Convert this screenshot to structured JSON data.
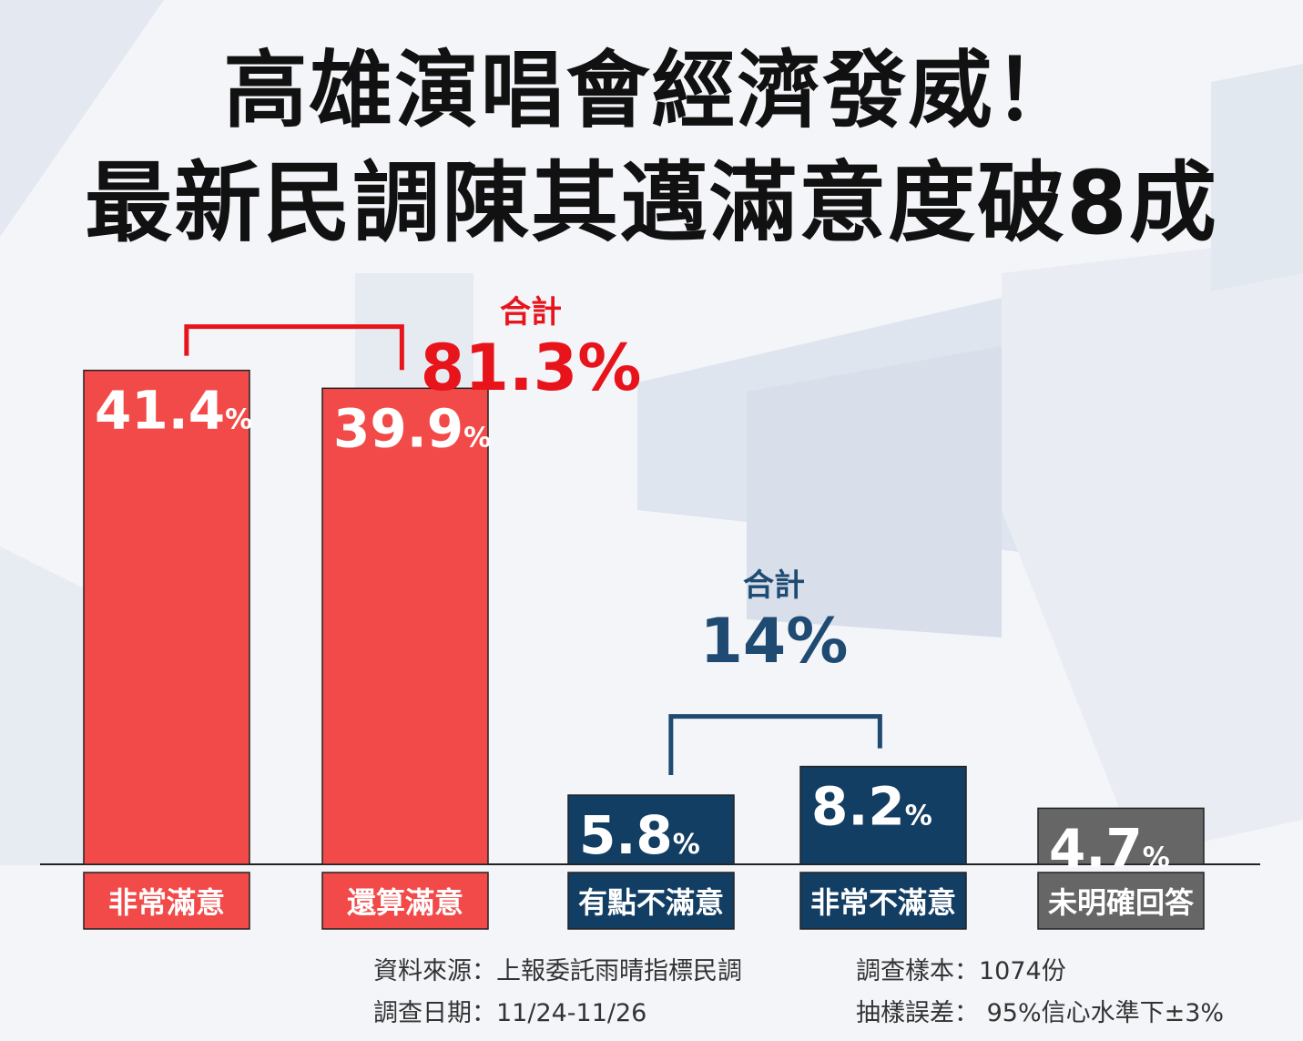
{
  "title": {
    "line1": "高雄演唱會經濟發威！",
    "line2": "最新民調陳其邁滿意度破8成"
  },
  "colors": {
    "satisfied": "#f24a49",
    "dissatisfied": "#133e64",
    "no_answer": "#666666",
    "satisfied_sum": "#e8141c",
    "dissatisfied_sum": "#1f4a72"
  },
  "chart_data": {
    "type": "bar",
    "categories": [
      "非常滿意",
      "還算滿意",
      "有點不滿意",
      "非常不滿意",
      "未明確回答"
    ],
    "values": [
      41.4,
      39.9,
      5.8,
      8.2,
      4.7
    ],
    "value_labels": [
      "41.4",
      "39.9",
      "5.8",
      "8.2",
      "4.7"
    ],
    "unit": "%",
    "groups": [
      {
        "label": "合計",
        "total": "81.3%",
        "members": [
          0,
          1
        ]
      },
      {
        "label": "合計",
        "total": "14%",
        "members": [
          2,
          3
        ]
      }
    ],
    "grid": false,
    "legend": "none"
  },
  "footer": {
    "source": "資料來源：上報委託雨晴指標民調",
    "date": "調查日期：11/24-11/26",
    "sample": "調查樣本：1074份",
    "error": "抽樣誤差： 95%信心水準下±3%"
  }
}
